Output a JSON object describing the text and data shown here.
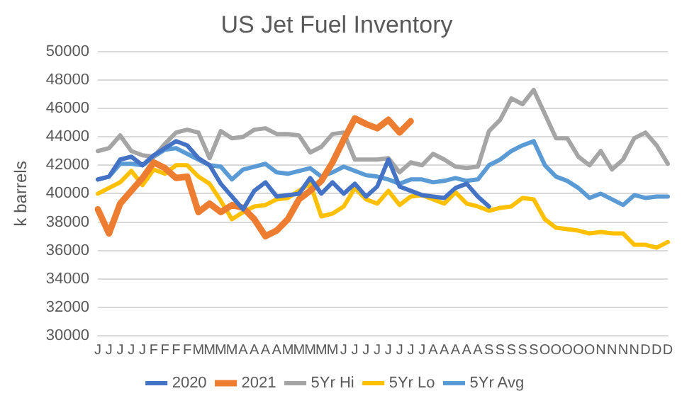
{
  "chart_data": {
    "type": "line",
    "title": "US Jet Fuel Inventory",
    "ylabel": "k barrels",
    "categories": [
      "J",
      "J",
      "J",
      "J",
      "J",
      "F",
      "F",
      "F",
      "F",
      "M",
      "M",
      "M",
      "M",
      "A",
      "A",
      "A",
      "A",
      "M",
      "M",
      "M",
      "M",
      "M",
      "J",
      "J",
      "J",
      "J",
      "J",
      "J",
      "J",
      "J",
      "A",
      "A",
      "A",
      "A",
      "A",
      "S",
      "S",
      "S",
      "S",
      "S",
      "O",
      "O",
      "O",
      "O",
      "O",
      "N",
      "N",
      "N",
      "N",
      "D",
      "D",
      "D"
    ],
    "ylim": [
      30000,
      50000
    ],
    "yticks": [
      30000,
      32000,
      34000,
      36000,
      38000,
      40000,
      42000,
      44000,
      46000,
      48000,
      50000
    ],
    "grid": "y",
    "legend": "bottom",
    "marker": "none",
    "line_style": "solid",
    "series": [
      {
        "name": "2020",
        "color": "#4472c4",
        "values": [
          41000,
          41200,
          42400,
          42600,
          42000,
          42700,
          43200,
          43700,
          43400,
          42500,
          42000,
          40700,
          39800,
          38900,
          40200,
          40800,
          39800,
          39900,
          40000,
          41100,
          40000,
          40800,
          40000,
          40700,
          39800,
          40500,
          42400,
          40500,
          40200,
          39900,
          39800,
          39700,
          40400,
          40700,
          39800,
          39100,
          null,
          null,
          null,
          null,
          null,
          null,
          null,
          null,
          null,
          null,
          null,
          null,
          null,
          null,
          null,
          null
        ]
      },
      {
        "name": "2021",
        "color": "#ed7d31",
        "values": [
          38900,
          37200,
          39300,
          40200,
          41100,
          42200,
          41800,
          41100,
          41200,
          38700,
          39300,
          38700,
          39200,
          39000,
          38200,
          37000,
          37400,
          38200,
          39600,
          40200,
          40900,
          42200,
          43800,
          45300,
          44900,
          44600,
          45200,
          44300,
          45100,
          null,
          null,
          null,
          null,
          null,
          null,
          null,
          null,
          null,
          null,
          null,
          null,
          null,
          null,
          null,
          null,
          null,
          null,
          null,
          null,
          null,
          null,
          null
        ]
      },
      {
        "name": "5Yr Hi",
        "color": "#a5a5a5",
        "values": [
          43000,
          43200,
          44100,
          43000,
          42700,
          42600,
          43500,
          44300,
          44500,
          44300,
          42500,
          44400,
          43900,
          44000,
          44500,
          44600,
          44200,
          44200,
          44100,
          42900,
          43300,
          44200,
          44300,
          42400,
          42400,
          42400,
          42500,
          41500,
          42200,
          42000,
          42800,
          42400,
          41900,
          41800,
          41900,
          44400,
          45200,
          46700,
          46300,
          47300,
          45600,
          43900,
          43900,
          42600,
          42000,
          43000,
          41700,
          42400,
          43900,
          44300,
          43400,
          42100
        ]
      },
      {
        "name": "5Yr Lo",
        "color": "#ffc000",
        "values": [
          40000,
          40400,
          40800,
          41600,
          40600,
          41700,
          41400,
          42000,
          42000,
          41200,
          40700,
          39500,
          38200,
          38700,
          39100,
          39200,
          39600,
          39700,
          40200,
          40700,
          38400,
          38600,
          39100,
          40400,
          39600,
          39300,
          40200,
          39200,
          39800,
          39900,
          39600,
          39300,
          40100,
          39300,
          39100,
          38800,
          39000,
          39100,
          39700,
          39600,
          38200,
          37600,
          37500,
          37400,
          37200,
          37300,
          37200,
          37200,
          36400,
          36400,
          36200,
          36600
        ]
      },
      {
        "name": "5Yr Avg",
        "color": "#5b9bd5",
        "values": [
          41000,
          41200,
          42100,
          42100,
          42000,
          42600,
          43100,
          43200,
          42800,
          42400,
          42000,
          41900,
          41000,
          41700,
          41900,
          42100,
          41500,
          41400,
          41600,
          41800,
          41200,
          41500,
          41900,
          41600,
          41300,
          41200,
          41000,
          40700,
          41000,
          41000,
          40800,
          40900,
          41100,
          40900,
          41000,
          42000,
          42400,
          43000,
          43400,
          43700,
          42000,
          41200,
          40900,
          40400,
          39700,
          40000,
          39600,
          39200,
          39900,
          39700,
          39800,
          39800
        ]
      }
    ]
  }
}
